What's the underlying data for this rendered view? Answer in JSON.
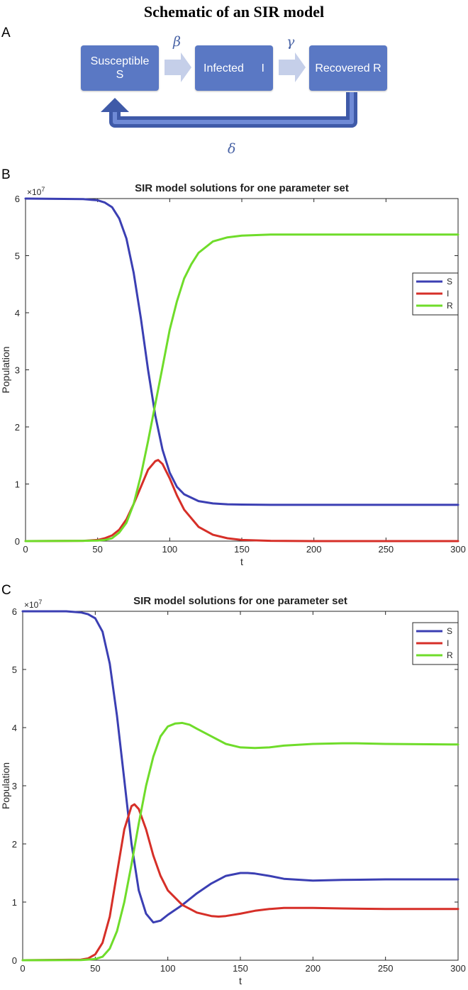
{
  "title": "Schematic of an SIR model",
  "schematic": {
    "panel_label": "A",
    "boxes": [
      {
        "line1": "Susceptible",
        "line2": "S"
      },
      {
        "line1": "Infected",
        "line2": "I"
      },
      {
        "line1": "Recovered R",
        "line2": ""
      }
    ],
    "params": {
      "beta": "β",
      "gamma": "γ",
      "delta": "δ"
    },
    "colors": {
      "box": "#5a78c4",
      "arrow": "#c5cfe9",
      "feedback": "#3f5aa8"
    }
  },
  "colors": {
    "S": "#3b3fb3",
    "I": "#d62f28",
    "R": "#6fdc2a"
  },
  "chart_data": [
    {
      "panel_label": "B",
      "type": "line",
      "title": "SIR model solutions for one parameter set",
      "xlabel": "t",
      "ylabel": "Population",
      "exponent_label": "×10",
      "exponent_power": "7",
      "xlim": [
        0,
        300
      ],
      "ylim": [
        0,
        6
      ],
      "xticks": [
        0,
        50,
        100,
        150,
        200,
        250,
        300
      ],
      "yticks": [
        0,
        1,
        2,
        3,
        4,
        5,
        6
      ],
      "legend_position": "right",
      "series": [
        {
          "name": "S",
          "x": [
            0,
            40,
            50,
            55,
            60,
            65,
            70,
            75,
            80,
            85,
            90,
            95,
            100,
            105,
            110,
            120,
            130,
            140,
            150,
            170,
            200,
            250,
            300
          ],
          "y": [
            6.0,
            5.99,
            5.97,
            5.93,
            5.85,
            5.65,
            5.3,
            4.7,
            3.9,
            3.0,
            2.2,
            1.6,
            1.2,
            0.95,
            0.82,
            0.7,
            0.66,
            0.645,
            0.64,
            0.635,
            0.635,
            0.635,
            0.635
          ]
        },
        {
          "name": "I",
          "x": [
            0,
            40,
            50,
            55,
            60,
            65,
            70,
            75,
            80,
            85,
            90,
            92,
            95,
            100,
            105,
            110,
            120,
            130,
            140,
            150,
            170,
            200,
            250,
            300
          ],
          "y": [
            0,
            0.005,
            0.02,
            0.05,
            0.1,
            0.2,
            0.38,
            0.65,
            0.95,
            1.25,
            1.4,
            1.42,
            1.35,
            1.1,
            0.8,
            0.55,
            0.25,
            0.11,
            0.05,
            0.02,
            0.005,
            0,
            0,
            0
          ]
        },
        {
          "name": "R",
          "x": [
            0,
            40,
            50,
            55,
            60,
            65,
            70,
            75,
            80,
            85,
            90,
            95,
            100,
            105,
            110,
            115,
            120,
            130,
            140,
            150,
            170,
            200,
            250,
            300
          ],
          "y": [
            0,
            0.005,
            0.01,
            0.02,
            0.05,
            0.15,
            0.32,
            0.65,
            1.15,
            1.75,
            2.4,
            3.05,
            3.7,
            4.2,
            4.6,
            4.85,
            5.05,
            5.25,
            5.32,
            5.35,
            5.37,
            5.37,
            5.37,
            5.37
          ]
        }
      ]
    },
    {
      "panel_label": "C",
      "type": "line",
      "title": "SIR model solutions for one parameter set",
      "xlabel": "t",
      "ylabel": "Population",
      "exponent_label": "×10",
      "exponent_power": "7",
      "xlim": [
        0,
        300
      ],
      "ylim": [
        0,
        6
      ],
      "xticks": [
        0,
        50,
        100,
        150,
        200,
        250,
        300
      ],
      "yticks": [
        0,
        1,
        2,
        3,
        4,
        5,
        6
      ],
      "legend_position": "top-right",
      "series": [
        {
          "name": "S",
          "x": [
            0,
            30,
            40,
            45,
            50,
            55,
            60,
            65,
            70,
            75,
            80,
            85,
            90,
            95,
            100,
            110,
            120,
            130,
            140,
            150,
            155,
            160,
            170,
            180,
            200,
            220,
            250,
            300
          ],
          "y": [
            6.0,
            6.0,
            5.98,
            5.95,
            5.88,
            5.65,
            5.1,
            4.2,
            3.1,
            2.0,
            1.2,
            0.8,
            0.65,
            0.68,
            0.78,
            0.95,
            1.15,
            1.32,
            1.45,
            1.5,
            1.5,
            1.49,
            1.45,
            1.4,
            1.37,
            1.38,
            1.39,
            1.39
          ]
        },
        {
          "name": "I",
          "x": [
            0,
            40,
            45,
            50,
            55,
            60,
            65,
            70,
            75,
            77,
            80,
            85,
            90,
            95,
            100,
            110,
            120,
            130,
            135,
            140,
            150,
            160,
            170,
            180,
            190,
            200,
            220,
            250,
            300
          ],
          "y": [
            0,
            0.01,
            0.03,
            0.1,
            0.3,
            0.75,
            1.5,
            2.25,
            2.65,
            2.68,
            2.6,
            2.25,
            1.8,
            1.45,
            1.2,
            0.95,
            0.82,
            0.76,
            0.75,
            0.76,
            0.8,
            0.85,
            0.88,
            0.9,
            0.9,
            0.9,
            0.89,
            0.88,
            0.88
          ]
        },
        {
          "name": "R",
          "x": [
            0,
            40,
            50,
            55,
            60,
            65,
            70,
            75,
            80,
            85,
            90,
            95,
            100,
            105,
            110,
            115,
            120,
            130,
            140,
            150,
            160,
            170,
            180,
            200,
            220,
            230,
            250,
            300
          ],
          "y": [
            0,
            0.002,
            0.02,
            0.06,
            0.2,
            0.5,
            1.0,
            1.65,
            2.35,
            3.0,
            3.5,
            3.85,
            4.02,
            4.07,
            4.08,
            4.05,
            3.98,
            3.85,
            3.72,
            3.66,
            3.65,
            3.66,
            3.69,
            3.72,
            3.73,
            3.73,
            3.72,
            3.71
          ]
        }
      ]
    }
  ]
}
